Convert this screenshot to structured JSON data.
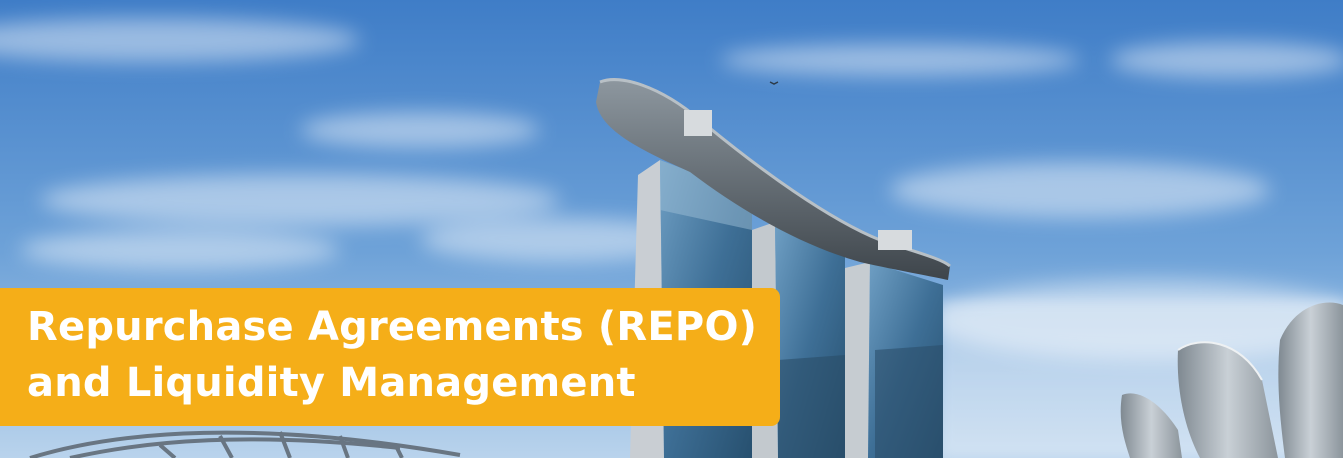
{
  "banner": {
    "title_line1": "Repurchase Agreements (REPO)",
    "title_line2": "and Liquidity Management",
    "accent_color": "#f5ae18",
    "text_color": "#ffffff"
  },
  "photo": {
    "subject": "city-skyline-photo"
  }
}
